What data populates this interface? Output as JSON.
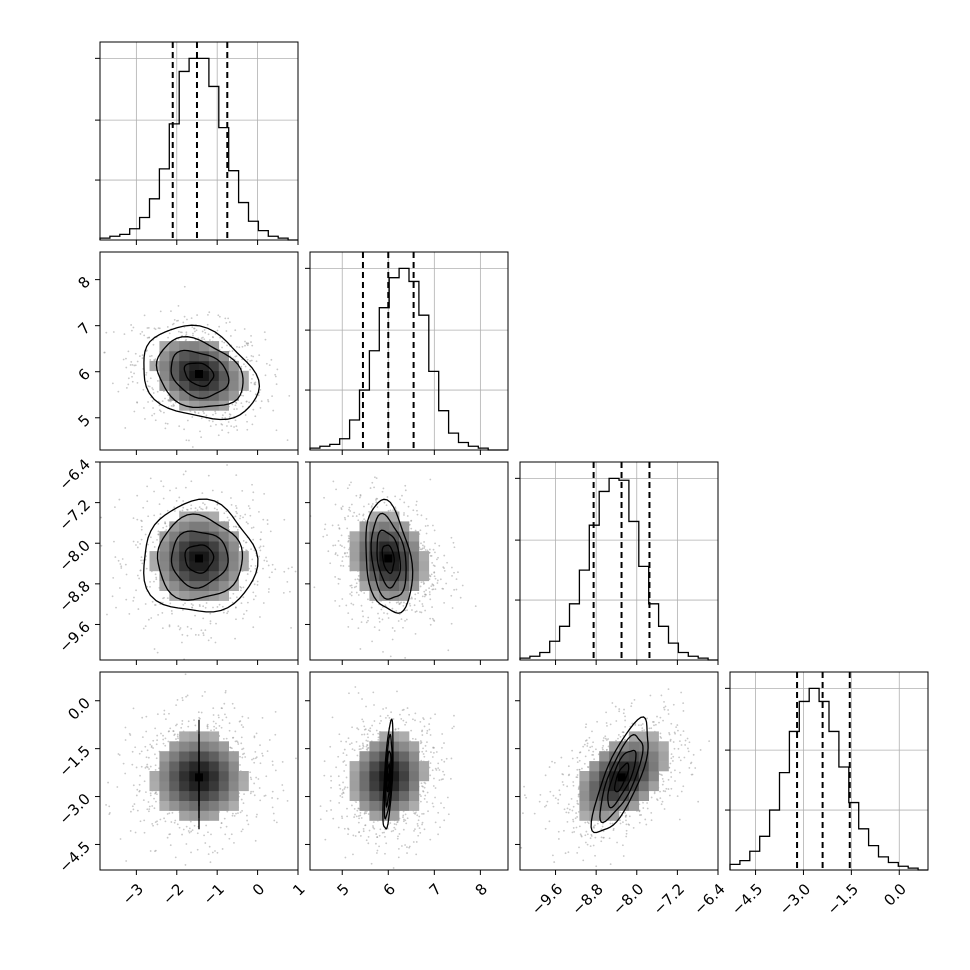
{
  "chart_data": {
    "type": "corner",
    "parameters": 4,
    "axis_labels": [
      "",
      "",
      "",
      ""
    ],
    "quantile_lines": [
      0.16,
      0.5,
      0.84
    ],
    "grid": true,
    "axes": [
      {
        "range": [
          -3.9,
          1.0
        ],
        "ticks": [
          -3,
          -2,
          -1,
          0,
          1
        ],
        "tick_labels": [
          "−3",
          "−2",
          "−1",
          "0",
          "1"
        ]
      },
      {
        "range": [
          4.3,
          8.6
        ],
        "ticks": [
          5,
          6,
          7,
          8
        ],
        "tick_labels": [
          "5",
          "6",
          "7",
          "8"
        ]
      },
      {
        "range": [
          -10.3,
          -6.4
        ],
        "ticks": [
          -9.6,
          -8.8,
          -8.0,
          -7.2,
          -6.4
        ],
        "tick_labels": [
          "−9.6",
          "−8.8",
          "−8.0",
          "−7.2",
          "−6.4"
        ]
      },
      {
        "range": [
          -5.3,
          0.9
        ],
        "ticks": [
          -4.5,
          -3.0,
          -1.5,
          0.0
        ],
        "tick_labels": [
          "−4.5",
          "−3.0",
          "−1.5",
          "0.0"
        ]
      }
    ],
    "marginals": [
      {
        "parameter": 0,
        "bin_edges_range": [
          -3.9,
          1.0
        ],
        "bins": 20,
        "counts": [
          1,
          2,
          3,
          6,
          12,
          22,
          38,
          62,
          90,
          97,
          97,
          82,
          60,
          37,
          20,
          10,
          5,
          2,
          1,
          0
        ],
        "quantiles": [
          -2.1,
          -1.5,
          -0.75
        ]
      },
      {
        "parameter": 1,
        "bin_edges_range": [
          4.3,
          8.6
        ],
        "bins": 20,
        "counts": [
          1,
          2,
          3,
          6,
          16,
          32,
          53,
          76,
          92,
          97,
          90,
          72,
          42,
          21,
          9,
          4,
          2,
          1,
          0,
          0
        ],
        "quantiles": [
          5.45,
          6.0,
          6.55
        ]
      },
      {
        "parameter": 2,
        "bin_edges_range": [
          -10.3,
          -6.4
        ],
        "bins": 20,
        "counts": [
          1,
          2,
          4,
          10,
          18,
          30,
          48,
          72,
          90,
          97,
          96,
          74,
          50,
          30,
          18,
          9,
          4,
          2,
          1,
          0
        ],
        "quantiles": [
          -8.85,
          -8.3,
          -7.75
        ]
      },
      {
        "parameter": 3,
        "bin_edges_range": [
          -5.3,
          0.9
        ],
        "bins": 20,
        "counts": [
          3,
          5,
          10,
          18,
          32,
          52,
          74,
          90,
          97,
          90,
          74,
          55,
          36,
          22,
          13,
          7,
          4,
          2,
          1,
          0
        ],
        "quantiles": [
          -3.2,
          -2.4,
          -1.55
        ]
      }
    ],
    "joint_distributions": [
      {
        "x_param": 0,
        "y_param": 1,
        "center": [
          -1.45,
          5.95
        ],
        "sigma": [
          0.7,
          0.5
        ],
        "correlation": -0.2
      },
      {
        "x_param": 0,
        "y_param": 2,
        "center": [
          -1.45,
          -8.3
        ],
        "sigma": [
          0.7,
          0.55
        ],
        "correlation": 0.0
      },
      {
        "x_param": 1,
        "y_param": 2,
        "center": [
          6.0,
          -8.3
        ],
        "sigma": [
          0.5,
          0.55
        ],
        "correlation": -0.15
      },
      {
        "x_param": 0,
        "y_param": 3,
        "center": [
          -1.45,
          -2.4
        ],
        "sigma": [
          0.7,
          0.85
        ],
        "correlation": 0.0
      },
      {
        "x_param": 1,
        "y_param": 3,
        "center": [
          6.0,
          -2.4
        ],
        "sigma": [
          0.5,
          0.85
        ],
        "correlation": 0.1
      },
      {
        "x_param": 2,
        "y_param": 3,
        "center": [
          -8.3,
          -2.4
        ],
        "sigma": [
          0.55,
          0.85
        ],
        "correlation": 0.45
      }
    ],
    "contour_levels_sigma": [
      0.5,
      1.0,
      1.5,
      2.0
    ]
  }
}
